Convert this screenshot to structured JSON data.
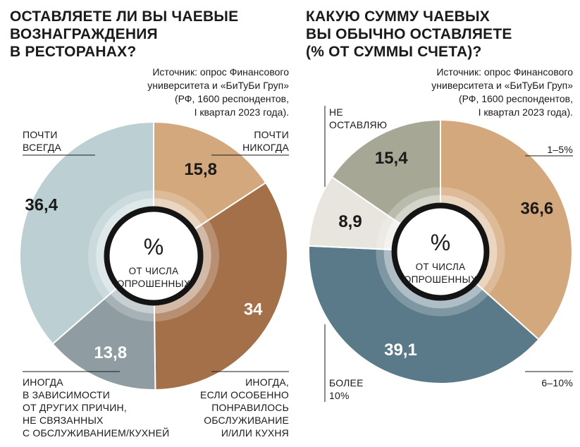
{
  "chart_data": [
    {
      "type": "pie",
      "title": "ОСТАВЛЯЕТЕ ЛИ ВЫ ЧАЕВЫЕ\nВОЗНАГРАЖДЕНИЯ\nВ РЕСТОРАНАХ?",
      "source": "Источник: опрос Финансового\nуниверситета и «БиТуБи Груп»\n(РФ, 1600 респондентов,\nI квартал 2023 года).",
      "center_symbol": "%",
      "center_caption": [
        "ОТ ЧИСЛА",
        "ОПРОШЕННЫХ"
      ],
      "slices": [
        {
          "label": "ПОЧТИ\nНИКОГДА",
          "value": 15.8,
          "value_text": "15,8",
          "color": "#d4a87d"
        },
        {
          "label": "ИНОГДА,\nЕСЛИ ОСОБЕННО\nПОНРАВИЛОСЬ\nОБСЛУЖИВАНИЕ\nИ/ИЛИ КУХНЯ",
          "value": 34,
          "value_text": "34",
          "color": "#a4704a"
        },
        {
          "label": "ИНОГДА\nВ ЗАВИСИМОСТИ\nОТ ДРУГИХ ПРИЧИН,\nНЕ СВЯЗАННЫХ\nС ОБСЛУЖИВАНИЕМ/КУХНЕЙ",
          "value": 13.8,
          "value_text": "13,8",
          "color": "#8f9da3"
        },
        {
          "label": "ПОЧТИ\nВСЕГДА",
          "value": 36.4,
          "value_text": "36,4",
          "color": "#bcd0d4"
        }
      ]
    },
    {
      "type": "pie",
      "title": "КАКУЮ СУММУ ЧАЕВЫХ\nВЫ ОБЫЧНО ОСТАВЛЯЕТЕ\n(% ОТ СУММЫ СЧЕТА)?",
      "source": "Источник: опрос Финансового\nуниверситета и «БиТуБи Груп»\n(РФ, 1600 респондентов,\nI квартал 2023 года).",
      "center_symbol": "%",
      "center_caption": [
        "ОТ ЧИСЛА",
        "ОПРОШЕННЫХ"
      ],
      "slices": [
        {
          "label": "1–5%",
          "value": 36.6,
          "value_text": "36,6",
          "color": "#d4a87d"
        },
        {
          "label": "6–10%",
          "value": 39.1,
          "value_text": "39,1",
          "color": "#5a7a8a"
        },
        {
          "label": "БОЛЕЕ\n10%",
          "value": 8.9,
          "value_text": "8,9",
          "color": "#e7e5dd"
        },
        {
          "label": "НЕ\nОСТАВЛЯЮ",
          "value": 15.4,
          "value_text": "15,4",
          "color": "#a6a895"
        }
      ]
    }
  ]
}
